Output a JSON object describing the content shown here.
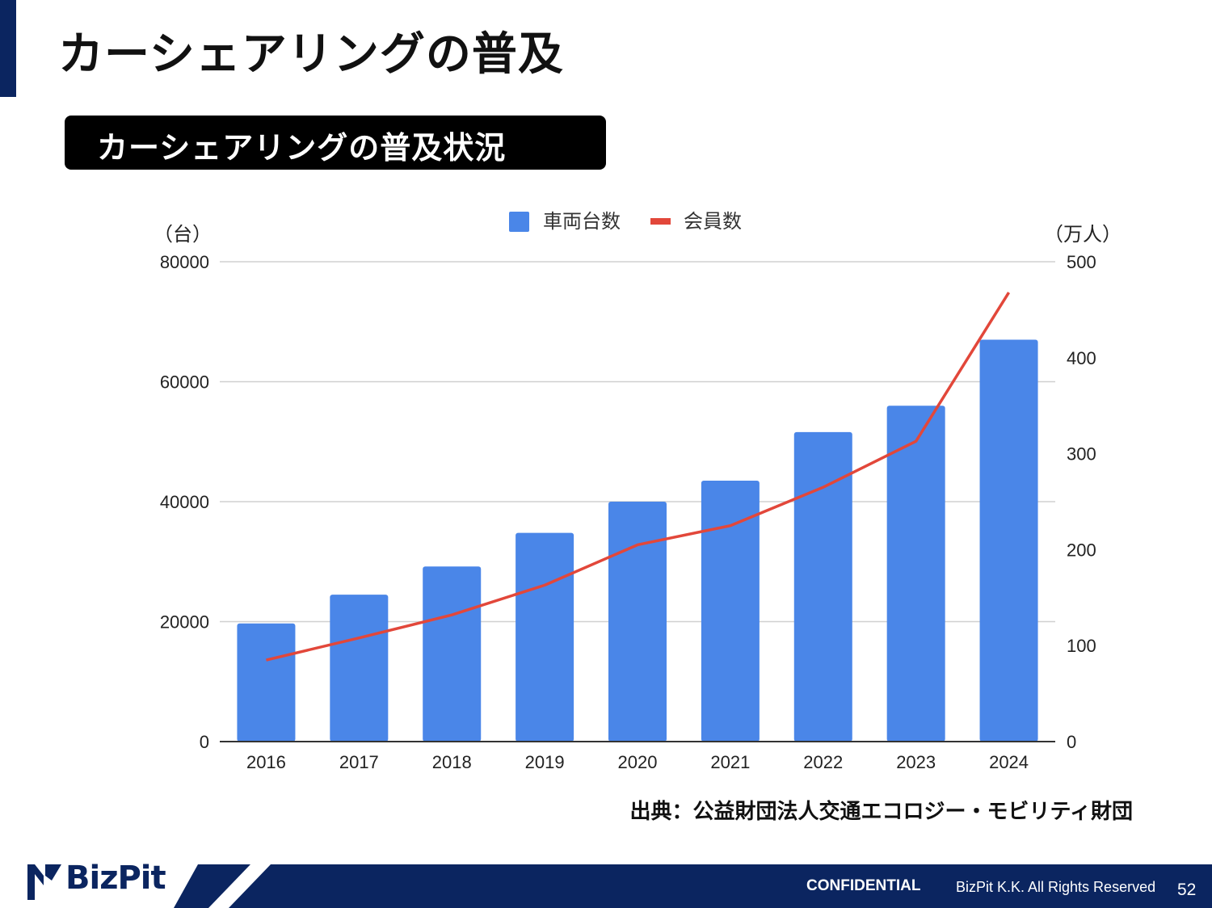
{
  "slide": {
    "title": "カーシェアリングの普及",
    "subtitle": "カーシェアリングの普及状況",
    "source": "出典：公益財団法人交通エコロジー・モビリティ財団"
  },
  "footer": {
    "logo": "BizPit",
    "confidential": "CONFIDENTIAL",
    "rights": "BizPit K.K. All Rights Reserved",
    "page": "52"
  },
  "colors": {
    "accent": "#0b2560",
    "bar": "#4a86e8",
    "line": "#e2473a",
    "grid": "#d0d0d0"
  },
  "chart_data": {
    "type": "bar",
    "categories": [
      "2016",
      "2017",
      "2018",
      "2019",
      "2020",
      "2021",
      "2022",
      "2023",
      "2024"
    ],
    "series": [
      {
        "name": "車両台数",
        "type": "bar",
        "axis": "left",
        "values": [
          19700,
          24500,
          29200,
          34800,
          40000,
          43500,
          51600,
          56000,
          67000
        ]
      },
      {
        "name": "会員数",
        "type": "line",
        "axis": "right",
        "values": [
          85,
          108,
          132,
          163,
          205,
          225,
          265,
          313,
          468
        ]
      }
    ],
    "y_left": {
      "unit_label": "（台）",
      "min": 0,
      "max": 80000,
      "ticks": [
        0,
        20000,
        40000,
        60000,
        80000
      ]
    },
    "y_right": {
      "unit_label": "（万人）",
      "min": 0,
      "max": 500,
      "ticks": [
        0,
        100,
        200,
        300,
        400,
        500
      ]
    },
    "grid": true,
    "legend_position": "top"
  }
}
